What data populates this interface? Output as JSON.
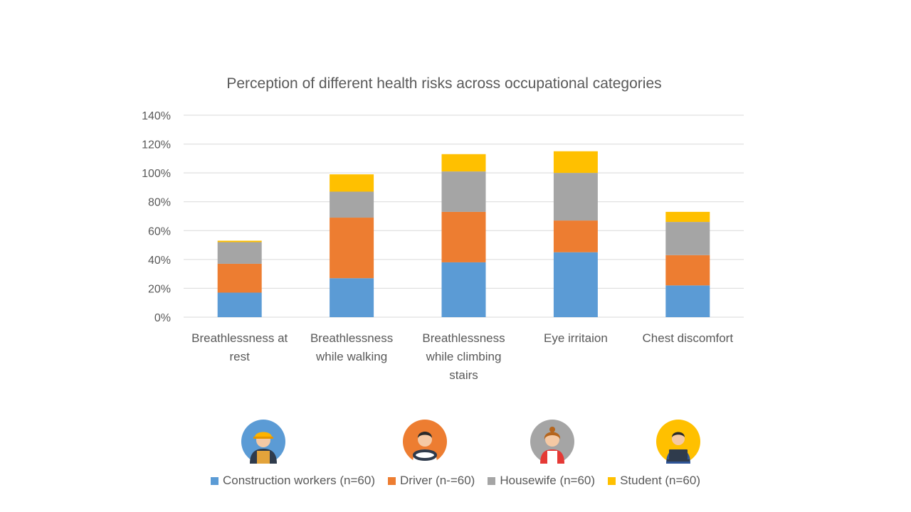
{
  "chart_data": {
    "type": "bar",
    "stacked": true,
    "title": "Perception of different health risks across occupational categories",
    "categories": [
      [
        "Breathlessness at",
        "rest"
      ],
      [
        "Breathlessness",
        "while walking"
      ],
      [
        "Breathlessness",
        "while climbing",
        "stairs"
      ],
      [
        "Eye irritaion"
      ],
      [
        "Chest discomfort"
      ]
    ],
    "series": [
      {
        "name": "Construction workers (n=60)",
        "color": "#5B9BD5",
        "values": [
          17,
          27,
          38,
          45,
          22
        ]
      },
      {
        "name": "Driver (n-=60)",
        "color": "#ED7D31",
        "values": [
          20,
          42,
          35,
          22,
          21
        ]
      },
      {
        "name": "Housewife (n=60)",
        "color": "#A5A5A5",
        "values": [
          15,
          18,
          28,
          33,
          23
        ]
      },
      {
        "name": "Student (n=60)",
        "color": "#FFC000",
        "values": [
          1,
          12,
          12,
          15,
          7
        ]
      }
    ],
    "yticks": [
      "0%",
      "20%",
      "40%",
      "60%",
      "80%",
      "100%",
      "120%",
      "140%"
    ],
    "ylim": [
      0,
      140
    ],
    "grid": true,
    "legend_position": "bottom"
  },
  "icons": [
    "construction-worker-icon",
    "driver-icon",
    "housewife-icon",
    "student-icon"
  ]
}
